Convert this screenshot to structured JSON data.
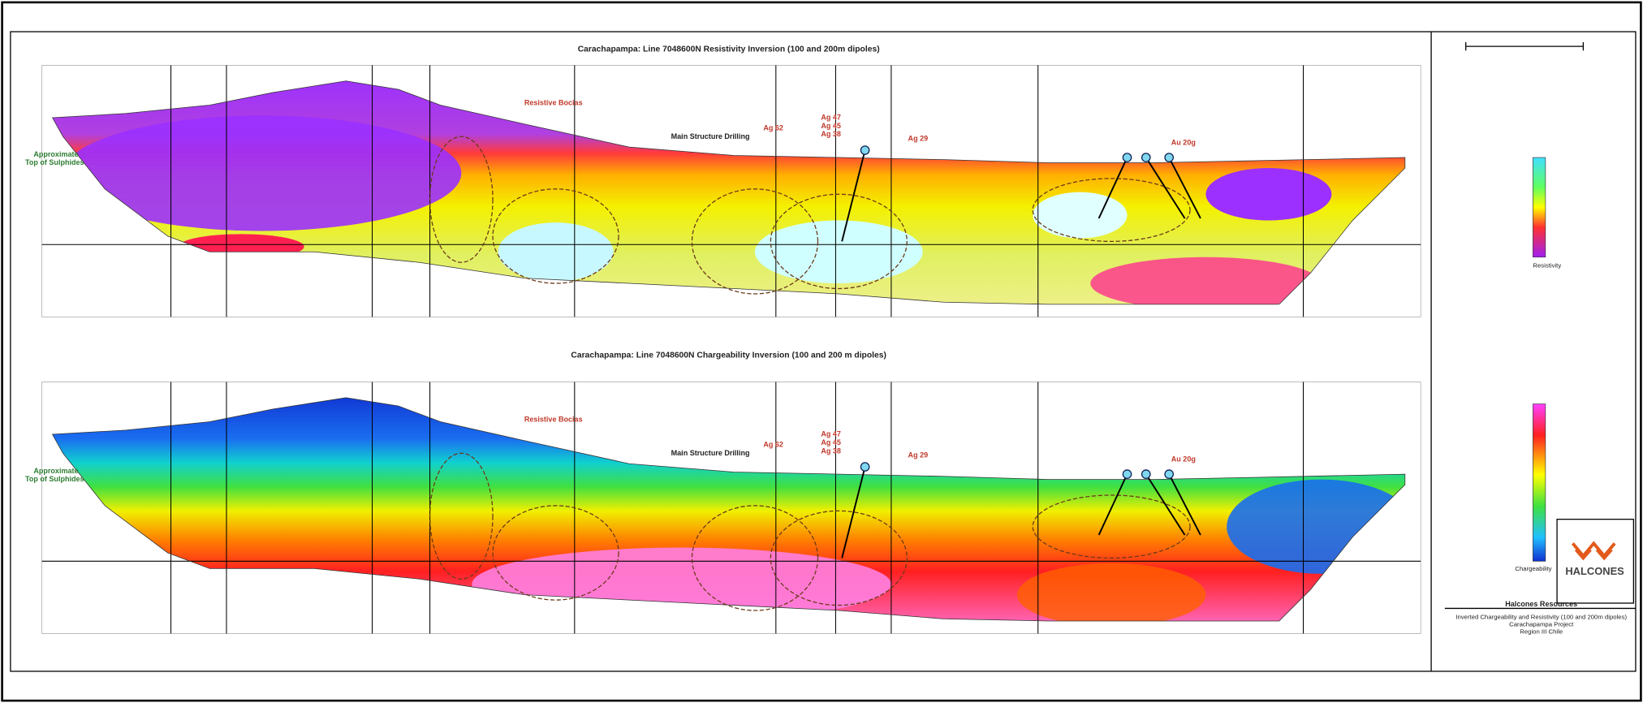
{
  "panels": [
    {
      "title": "Carachapampa: Line 7048600N Resistivity Inversion (100 and 200m dipoles)",
      "legend_label": "Resistivity"
    },
    {
      "title": "Carachapampa: Line 7048600N Chargeability Inversion (100 and 200 m dipoles)",
      "legend_label": "Chargeability"
    }
  ],
  "annotations": {
    "brecias": "Resistive Bocias",
    "drilling": "Main Structure Drilling",
    "ag62": "Ag 62",
    "ag47": "Ag 47",
    "ag45": "Ag 45",
    "ag38": "Ag 38",
    "ag29": "Ag 29",
    "au20": "Au 20g",
    "sulphides_1": "Approximate",
    "sulphides_2": "Top of Sulphides"
  },
  "logo": "HALCONES",
  "title_block": {
    "company": "Halcones Resources",
    "lines": [
      "Inverted Chargeability and Resistivity (100 and 200m dipoles)",
      "Carachapampa Project",
      "Region III Chile"
    ]
  }
}
